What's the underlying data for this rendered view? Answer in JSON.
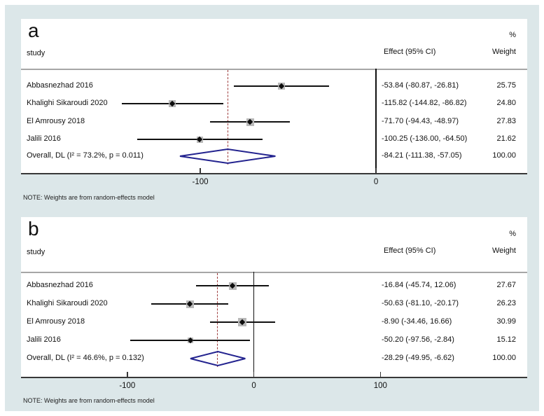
{
  "note": "NOTE: Weights are from random-effects model",
  "headers": {
    "study": "study",
    "percent": "%",
    "effect": "Effect (95% CI)",
    "weight": "Weight"
  },
  "colors": {
    "background": "#dce7e9",
    "panel": "#ffffff",
    "axis_line": "#383838",
    "header_line": "#a6a6a6",
    "ci_line": "#111111",
    "marker": "#0d0d0d",
    "weight_box": "#b9b9b9",
    "diamond": "#23238f",
    "overall_dashed_line": "#9e3b3b",
    "text": "#1a1a1a"
  },
  "chart_data": [
    {
      "type": "forest",
      "panel_label": "a",
      "studies": [
        {
          "name": "Abbasnezhad 2016",
          "effect": -53.84,
          "lo": -80.87,
          "hi": -26.81,
          "weight": 25.75,
          "effect_label": "-53.84 (-80.87, -26.81)",
          "weight_label": "25.75"
        },
        {
          "name": "Khalighi Sikaroudi 2020",
          "effect": -115.82,
          "lo": -144.82,
          "hi": -86.82,
          "weight": 24.8,
          "effect_label": "-115.82 (-144.82, -86.82)",
          "weight_label": "24.80"
        },
        {
          "name": "El Amrousy 2018",
          "effect": -71.7,
          "lo": -94.43,
          "hi": -48.97,
          "weight": 27.83,
          "effect_label": "-71.70 (-94.43, -48.97)",
          "weight_label": "27.83"
        },
        {
          "name": "Jalili 2016",
          "effect": -100.25,
          "lo": -136.0,
          "hi": -64.5,
          "weight": 21.62,
          "effect_label": "-100.25 (-136.00, -64.50)",
          "weight_label": "21.62"
        }
      ],
      "overall": {
        "name": "Overall, DL (I² = 73.2%, p = 0.011)",
        "effect": -84.21,
        "lo": -111.38,
        "hi": -57.05,
        "effect_label": "-84.21 (-111.38, -57.05)",
        "weight_label": "100.00"
      },
      "axis": {
        "xmin": -202,
        "xmax": 86,
        "ticks": [
          -100,
          0
        ],
        "tick_labels": [
          "-100",
          "0"
        ]
      }
    },
    {
      "type": "forest",
      "panel_label": "b",
      "studies": [
        {
          "name": "Abbasnezhad 2016",
          "effect": -16.84,
          "lo": -45.74,
          "hi": 12.06,
          "weight": 27.67,
          "effect_label": "-16.84 (-45.74, 12.06)",
          "weight_label": "27.67"
        },
        {
          "name": "Khalighi Sikaroudi 2020",
          "effect": -50.63,
          "lo": -81.1,
          "hi": -20.17,
          "weight": 26.23,
          "effect_label": "-50.63 (-81.10, -20.17)",
          "weight_label": "26.23"
        },
        {
          "name": "El Amrousy 2018",
          "effect": -8.9,
          "lo": -34.46,
          "hi": 16.66,
          "weight": 30.99,
          "effect_label": "-8.90 (-34.46, 16.66)",
          "weight_label": "30.99"
        },
        {
          "name": "Jalili 2016",
          "effect": -50.2,
          "lo": -97.56,
          "hi": -2.84,
          "weight": 15.12,
          "effect_label": "-50.20 (-97.56, -2.84)",
          "weight_label": "15.12"
        }
      ],
      "overall": {
        "name": "Overall, DL (I² = 46.6%, p = 0.132)",
        "effect": -28.29,
        "lo": -49.95,
        "hi": -6.62,
        "effect_label": "-28.29 (-49.95, -6.62)",
        "weight_label": "100.00"
      },
      "axis": {
        "xmin": -184,
        "xmax": 216,
        "ticks": [
          -100,
          0,
          100
        ],
        "tick_labels": [
          "-100",
          "0",
          "100"
        ]
      }
    }
  ]
}
